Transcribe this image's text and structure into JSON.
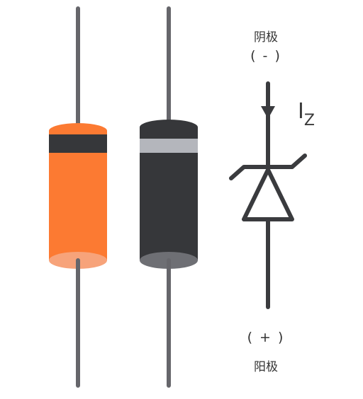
{
  "labels": {
    "cathode_name": "阴极",
    "cathode_sign": "( - )",
    "anode_sign": "( + )",
    "anode_name": "阳极",
    "current_symbol": "I",
    "current_subscript": "Z"
  },
  "colors": {
    "lead": "#66666b",
    "orange_body": "#fc7a32",
    "orange_band": "#36373a",
    "orange_end": "#f7a37a",
    "black_body": "#36373a",
    "black_band": "#b4b6bc",
    "black_end": "#6e6f74",
    "symbol": "#3a3b3e"
  },
  "components": [
    {
      "name": "orange-zener-diode",
      "body_color": "orange_body",
      "band_color": "orange_band"
    },
    {
      "name": "black-zener-diode",
      "body_color": "black_body",
      "band_color": "black_band"
    }
  ]
}
